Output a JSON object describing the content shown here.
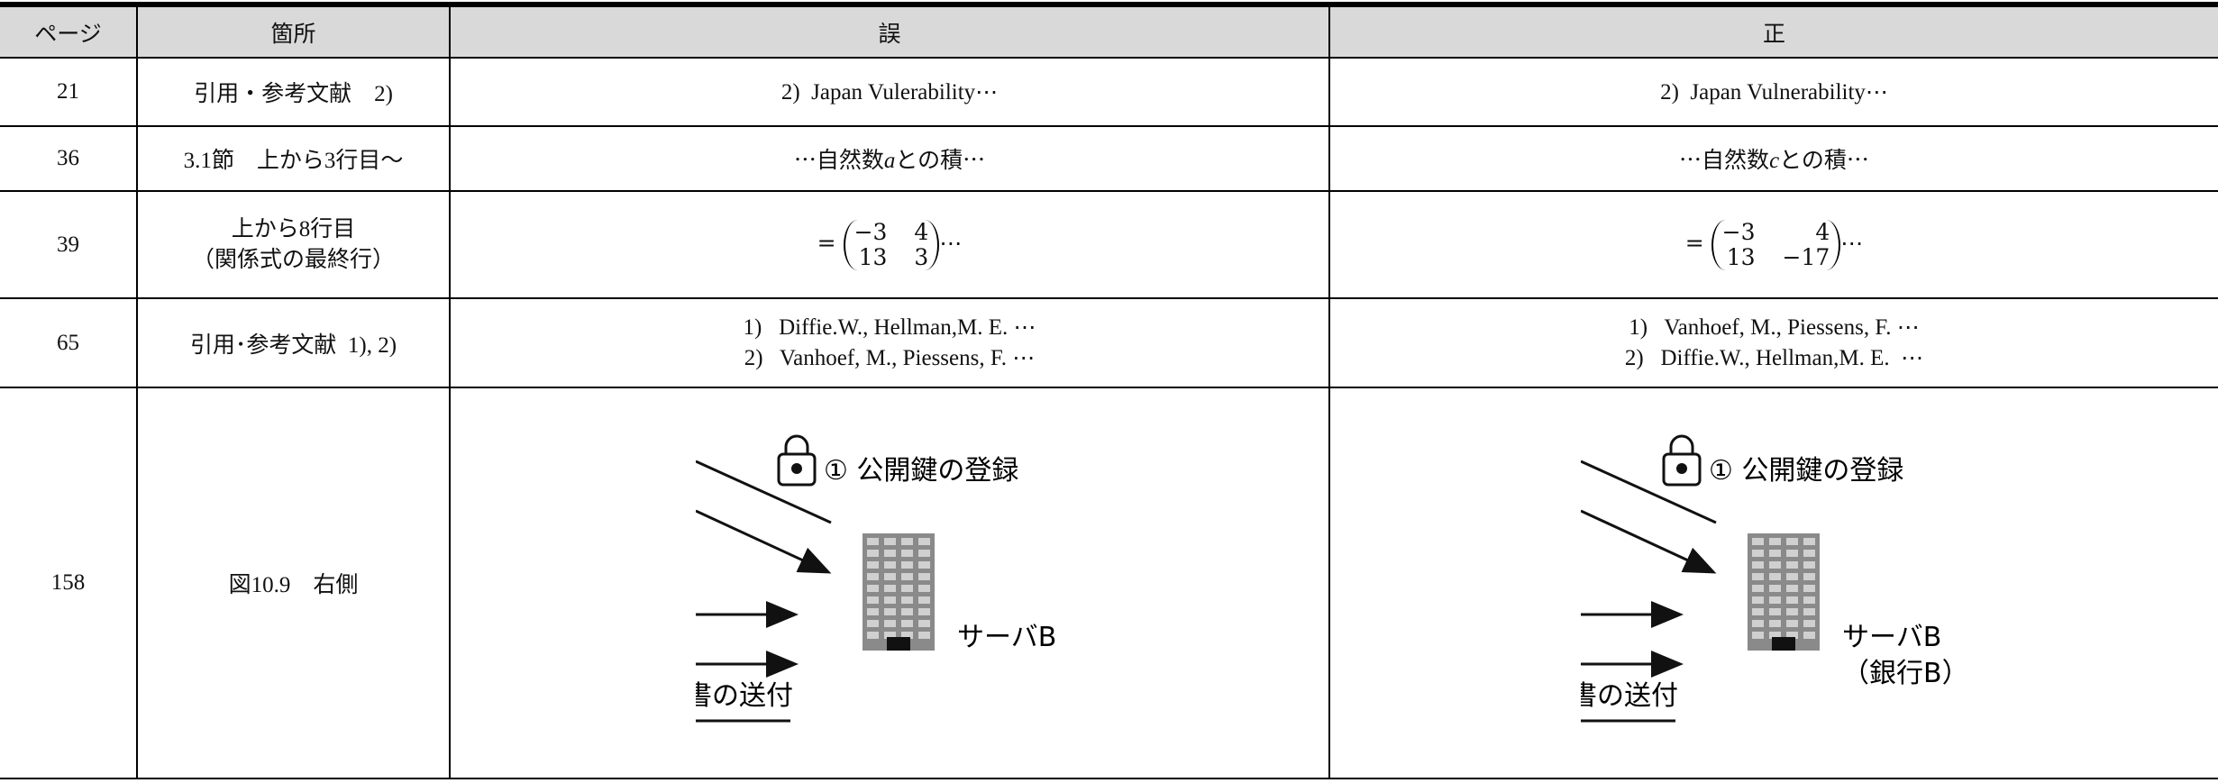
{
  "table": {
    "header": [
      "ページ",
      "箇所",
      "誤",
      "正"
    ],
    "rows": [
      [
        "21",
        "引用・参考文献　2)",
        "2)  Japan Vulerability⋯",
        "2)  Japan Vulnerability⋯"
      ],
      [
        "36",
        "3.1節　上から3行目～",
        {
          "before": "⋯自然数",
          "var": "a",
          "after": "との積⋯"
        },
        {
          "before": "⋯自然数",
          "var": "c",
          "after": "との積⋯"
        }
      ],
      [
        "39",
        [
          "上から8行目",
          "（関係式の最終行）"
        ],
        {
          "prefix": "=",
          "matrix": [
            [
              "−3",
              "4"
            ],
            [
              "13",
              "3"
            ]
          ],
          "suffix": "⋯"
        },
        {
          "prefix": "=",
          "matrix": [
            [
              "−3",
              "4"
            ],
            [
              "13",
              "−17"
            ]
          ],
          "suffix": "⋯"
        }
      ],
      [
        "65",
        "引用･参考文献  1), 2)",
        [
          "1)   Diffie.W., Hellman,M. E. ⋯",
          "2)   Vanhoef, M., Piessens, F. ⋯"
        ],
        [
          "1)   Vanhoef, M., Piessens, F. ⋯",
          "2)   Diffie.W., Hellman,M. E.  ⋯"
        ]
      ],
      [
        "158",
        "図10.9　右側",
        {
          "register": "① 公開鍵の登録",
          "server": "サーバB",
          "send": "書の送付"
        },
        {
          "register": "① 公開鍵の登録",
          "server": "サーバB",
          "bank": "（銀行B）",
          "send": "書の送付"
        }
      ]
    ]
  }
}
